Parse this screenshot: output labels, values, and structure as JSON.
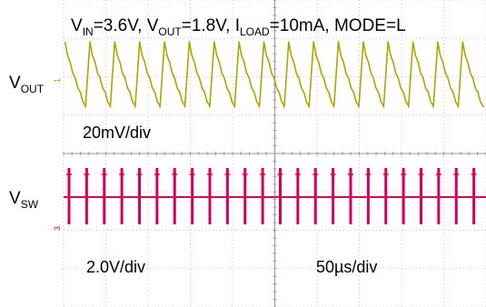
{
  "chart_data": {
    "type": "line",
    "title": {
      "vin": {
        "main": "V",
        "sub": "IN",
        "rest": "=3.6V, "
      },
      "vout": {
        "main": "V",
        "sub": "OUT",
        "rest": "=1.8V, "
      },
      "iload": {
        "main": "I",
        "sub": "LOAD",
        "rest": "=10mA, MODE=L"
      }
    },
    "grid": true,
    "grid_divisions": {
      "x": 10,
      "y": 8
    },
    "timebase": {
      "label": "50µs/div",
      "us_per_div": 50,
      "x_range_us": [
        0,
        500
      ]
    },
    "series": [
      {
        "name": {
          "main": "V",
          "sub": "OUT"
        },
        "channel_marker": "1",
        "scale_label": "20mV/div",
        "color": "#a8a800",
        "waveform": "sawtooth",
        "cycles_in_window": 17,
        "peak_to_peak_mV": 40
      },
      {
        "name": {
          "main": "V",
          "sub": "SW"
        },
        "channel_marker": "3",
        "scale_label": "2.0V/div",
        "color": "#d6005c",
        "waveform": "pulse-train",
        "pulses_in_window": 24,
        "pulse_height_V": 3.6
      }
    ]
  }
}
